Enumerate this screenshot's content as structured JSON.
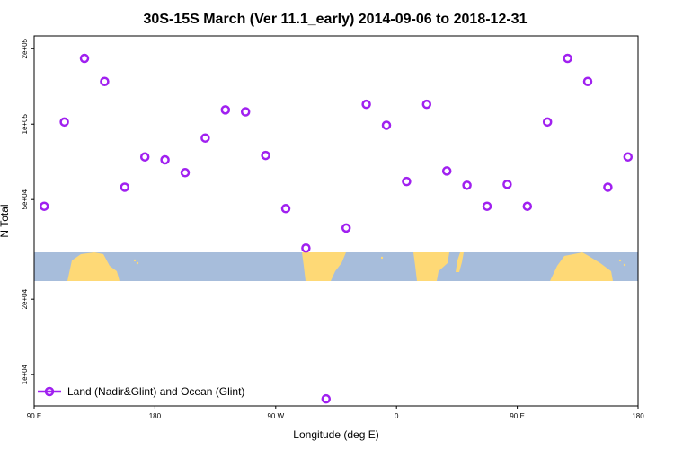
{
  "chart_data": {
    "type": "scatter",
    "title": "30S-15S March (Ver 11.1_early)   2014-09-06 to 2018-12-31",
    "xlabel": "Longitude (deg E)",
    "ylabel": "N Total",
    "x_ticks": [
      {
        "x": 0,
        "label": "90 E"
      },
      {
        "x": 90,
        "label": "180"
      },
      {
        "x": 180,
        "label": "90 W"
      },
      {
        "x": 270,
        "label": "0"
      },
      {
        "x": 360,
        "label": "90 E"
      },
      {
        "x": 450,
        "label": "180"
      }
    ],
    "y_ticks": [
      {
        "y": 10000,
        "label": "1e+04"
      },
      {
        "y": 20000,
        "label": "2e+04"
      },
      {
        "y": 50000,
        "label": "5e+04"
      },
      {
        "y": 100000,
        "label": "1e+05"
      },
      {
        "y": 200000,
        "label": "2e+05"
      }
    ],
    "xlim": [
      0,
      450
    ],
    "ylim": [
      7500,
      225000
    ],
    "y_scale": "log",
    "grid": false,
    "legend_position": "bottom-left",
    "series": [
      {
        "name": "Land (Nadir&Glint) and Ocean (Glint)",
        "color": "#a020f0",
        "marker": "open-circle",
        "points": [
          {
            "x": 7.5,
            "y": 47000
          },
          {
            "x": 22.5,
            "y": 102000
          },
          {
            "x": 37.5,
            "y": 183000
          },
          {
            "x": 52.5,
            "y": 148000
          },
          {
            "x": 67.5,
            "y": 56000
          },
          {
            "x": 82.5,
            "y": 74000
          },
          {
            "x": 97.5,
            "y": 72000
          },
          {
            "x": 112.5,
            "y": 64000
          },
          {
            "x": 127.5,
            "y": 88000
          },
          {
            "x": 142.5,
            "y": 114000
          },
          {
            "x": 157.5,
            "y": 112000
          },
          {
            "x": 172.5,
            "y": 75000
          },
          {
            "x": 187.5,
            "y": 46000
          },
          {
            "x": 202.5,
            "y": 32000
          },
          {
            "x": 217.5,
            "y": 8000
          },
          {
            "x": 232.5,
            "y": 38500
          },
          {
            "x": 247.5,
            "y": 120000
          },
          {
            "x": 262.5,
            "y": 99000
          },
          {
            "x": 277.5,
            "y": 59000
          },
          {
            "x": 292.5,
            "y": 120000
          },
          {
            "x": 307.5,
            "y": 65000
          },
          {
            "x": 322.5,
            "y": 57000
          },
          {
            "x": 337.5,
            "y": 47000
          },
          {
            "x": 352.5,
            "y": 57500
          },
          {
            "x": 367.5,
            "y": 47000
          },
          {
            "x": 382.5,
            "y": 102000
          },
          {
            "x": 397.5,
            "y": 183000
          },
          {
            "x": 412.5,
            "y": 148000
          },
          {
            "x": 427.5,
            "y": 56000
          },
          {
            "x": 442.5,
            "y": 74000
          }
        ]
      }
    ],
    "map_band": {
      "ocean_color": "#a7bddb",
      "land_color": "#fed976"
    }
  }
}
